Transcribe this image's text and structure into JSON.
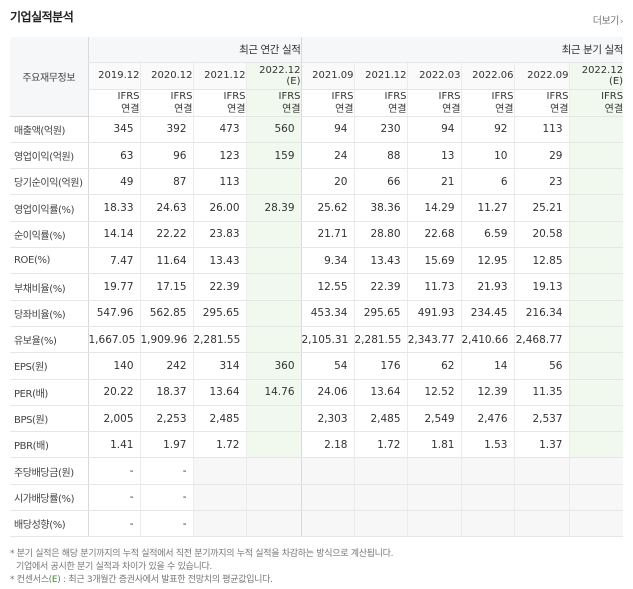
{
  "section": {
    "title": "기업실적분석",
    "more_label": "더보기"
  },
  "header": {
    "corner_label": "주요재무정보",
    "annual_label": "최근 연간 실적",
    "quarter_label": "최근 분기 실적",
    "periods": [
      "2019.12",
      "2020.12",
      "2021.12",
      "2022.12\n(E)",
      "2021.09",
      "2021.12",
      "2022.03",
      "2022.06",
      "2022.09",
      "2022.12\n(E)"
    ],
    "ifrs": [
      "IFRS\n연결",
      "IFRS\n연결",
      "IFRS\n연결",
      "IFRS\n연결",
      "IFRS\n연결",
      "IFRS\n연결",
      "IFRS\n연결",
      "IFRS\n연결",
      "IFRS\n연결",
      "IFRS\n연결"
    ]
  },
  "rows": [
    {
      "label": "매출액(억원)",
      "values": [
        "345",
        "392",
        "473",
        "560",
        "94",
        "230",
        "94",
        "92",
        "113",
        ""
      ]
    },
    {
      "label": "영업이익(억원)",
      "values": [
        "63",
        "96",
        "123",
        "159",
        "24",
        "88",
        "13",
        "10",
        "29",
        ""
      ]
    },
    {
      "label": "당기순이익(억원)",
      "values": [
        "49",
        "87",
        "113",
        "",
        "20",
        "66",
        "21",
        "6",
        "23",
        ""
      ]
    },
    {
      "label": "영업이익률(%)",
      "values": [
        "18.33",
        "24.63",
        "26.00",
        "28.39",
        "25.62",
        "38.36",
        "14.29",
        "11.27",
        "25.21",
        ""
      ]
    },
    {
      "label": "순이익률(%)",
      "values": [
        "14.14",
        "22.22",
        "23.83",
        "",
        "21.71",
        "28.80",
        "22.68",
        "6.59",
        "20.58",
        ""
      ]
    },
    {
      "label": "ROE(%)",
      "values": [
        "7.47",
        "11.64",
        "13.43",
        "",
        "9.34",
        "13.43",
        "15.69",
        "12.95",
        "12.85",
        ""
      ]
    },
    {
      "label": "부채비율(%)",
      "values": [
        "19.77",
        "17.15",
        "22.39",
        "",
        "12.55",
        "22.39",
        "11.73",
        "21.93",
        "19.13",
        ""
      ]
    },
    {
      "label": "당좌비율(%)",
      "values": [
        "547.96",
        "562.85",
        "295.65",
        "",
        "453.34",
        "295.65",
        "491.93",
        "234.45",
        "216.34",
        ""
      ]
    },
    {
      "label": "유보율(%)",
      "values": [
        "1,667.05",
        "1,909.96",
        "2,281.55",
        "",
        "2,105.31",
        "2,281.55",
        "2,343.77",
        "2,410.66",
        "2,468.77",
        ""
      ]
    },
    {
      "label": "EPS(원)",
      "values": [
        "140",
        "242",
        "314",
        "360",
        "54",
        "176",
        "62",
        "14",
        "56",
        ""
      ]
    },
    {
      "label": "PER(배)",
      "values": [
        "20.22",
        "18.37",
        "13.64",
        "14.76",
        "24.06",
        "13.64",
        "12.52",
        "12.39",
        "11.35",
        ""
      ]
    },
    {
      "label": "BPS(원)",
      "values": [
        "2,005",
        "2,253",
        "2,485",
        "",
        "2,303",
        "2,485",
        "2,549",
        "2,476",
        "2,537",
        ""
      ]
    },
    {
      "label": "PBR(배)",
      "values": [
        "1.41",
        "1.97",
        "1.72",
        "",
        "2.18",
        "1.72",
        "1.81",
        "1.53",
        "1.37",
        ""
      ]
    },
    {
      "label": "주당배당금(원)",
      "values": [
        "-",
        "-",
        "",
        "",
        "",
        "",
        "",
        "",
        "",
        ""
      ]
    },
    {
      "label": "시가배당률(%)",
      "values": [
        "-",
        "-",
        "",
        "",
        "",
        "",
        "",
        "",
        "",
        ""
      ]
    },
    {
      "label": "배당성향(%)",
      "values": [
        "-",
        "-",
        "",
        "",
        "",
        "",
        "",
        "",
        "",
        ""
      ]
    }
  ],
  "notes": {
    "line1": "* 분기 실적은 해당 분기까지의 누적 실적에서 직전 분기까지의 누적 실적을 차감하는 방식으로 계산됩니다.",
    "line2": "기업에서 공시한 분기 실적과 차이가 있을 수 있습니다.",
    "line3_prefix": "* 컨센서스(",
    "line3_e": "E",
    "line3_suffix": ") : 최근 3개월간 증권사에서 발표한 전망치의 평균값입니다."
  },
  "colors": {
    "accent_orange": "#e8692a",
    "estimate_bg": "#f1f9ef",
    "header_bg": "#f6f7f8"
  }
}
